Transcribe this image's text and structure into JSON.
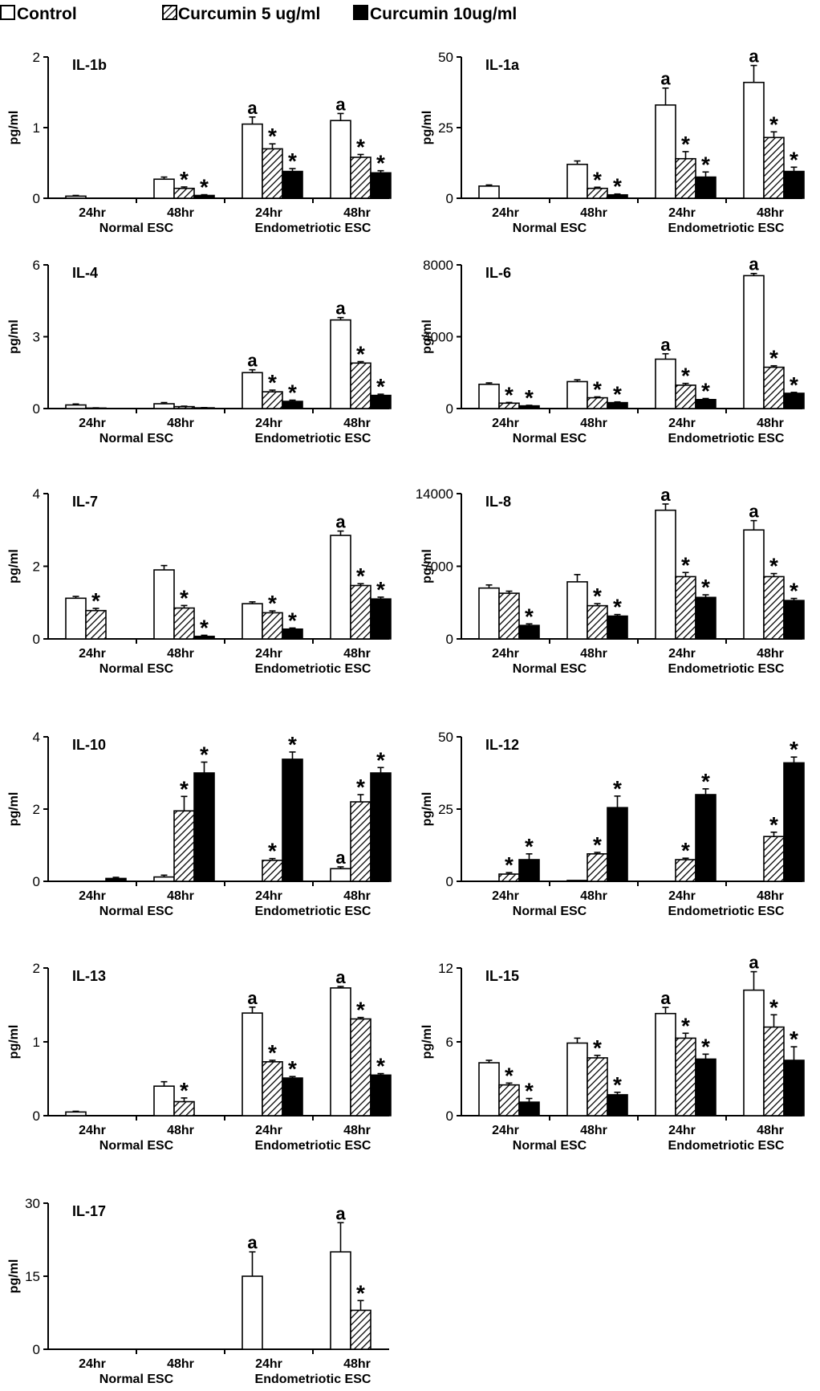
{
  "legend": [
    {
      "label": "Control",
      "fill": "white"
    },
    {
      "label": "Curcumin 5 ug/ml",
      "fill": "hatch"
    },
    {
      "label": "Curcumin 10ug/ml",
      "fill": "black"
    }
  ],
  "colors": {
    "bar_outline": "#000000",
    "solid": "#000000",
    "empty": "#ffffff"
  },
  "chart_data": [
    {
      "type": "bar",
      "title": "IL-1b",
      "ylabel": "pg/ml",
      "ylim": [
        0,
        2
      ],
      "yticks": [
        0,
        1,
        2
      ],
      "categories": [
        "24hr",
        "48hr",
        "24hr",
        "48hr"
      ],
      "groups": [
        "Normal ESC",
        "Endometriotic ESC"
      ],
      "series": [
        {
          "name": "Control",
          "values": [
            0.03,
            0.27,
            1.05,
            1.1
          ],
          "errors": [
            0.01,
            0.03,
            0.1,
            0.1
          ],
          "marks": [
            "",
            "",
            "a",
            "a"
          ]
        },
        {
          "name": "Curcumin 5 ug/ml",
          "values": [
            0,
            0.14,
            0.7,
            0.58
          ],
          "errors": [
            0,
            0.02,
            0.07,
            0.04
          ],
          "marks": [
            "",
            "*",
            "*",
            "*"
          ]
        },
        {
          "name": "Curcumin 10ug/ml",
          "values": [
            0,
            0.04,
            0.38,
            0.36
          ],
          "errors": [
            0,
            0.01,
            0.04,
            0.03
          ],
          "marks": [
            "",
            "*",
            "*",
            "*"
          ]
        }
      ]
    },
    {
      "type": "bar",
      "title": "IL-1a",
      "ylabel": "pg/ml",
      "ylim": [
        0,
        50
      ],
      "yticks": [
        0,
        25,
        50
      ],
      "categories": [
        "24hr",
        "48hr",
        "24hr",
        "48hr"
      ],
      "groups": [
        "Normal ESC",
        "Endometriotic ESC"
      ],
      "series": [
        {
          "name": "Control",
          "values": [
            4.3,
            12,
            33,
            41
          ],
          "errors": [
            0.4,
            1.2,
            6,
            6
          ],
          "marks": [
            "",
            "",
            "a",
            "a"
          ]
        },
        {
          "name": "Curcumin 5 ug/ml",
          "values": [
            0,
            3.5,
            14,
            21.5
          ],
          "errors": [
            0,
            0.4,
            2.5,
            2
          ],
          "marks": [
            "",
            "*",
            "*",
            "*"
          ]
        },
        {
          "name": "Curcumin 10ug/ml",
          "values": [
            0,
            1.2,
            7.5,
            9.5
          ],
          "errors": [
            0,
            0.3,
            1.8,
            1.5
          ],
          "marks": [
            "",
            "*",
            "*",
            "*"
          ]
        }
      ]
    },
    {
      "type": "bar",
      "title": "IL-4",
      "ylabel": "pg/ml",
      "ylim": [
        0,
        6
      ],
      "yticks": [
        0,
        3,
        6
      ],
      "categories": [
        "24hr",
        "48hr",
        "24hr",
        "48hr"
      ],
      "groups": [
        "Normal ESC",
        "Endometriotic ESC"
      ],
      "series": [
        {
          "name": "Control",
          "values": [
            0.15,
            0.2,
            1.5,
            3.7
          ],
          "errors": [
            0.04,
            0.05,
            0.12,
            0.1
          ],
          "marks": [
            "",
            "",
            "a",
            "a"
          ]
        },
        {
          "name": "Curcumin 5 ug/ml",
          "values": [
            0.02,
            0.08,
            0.7,
            1.9
          ],
          "errors": [
            0.01,
            0.02,
            0.07,
            0.06
          ],
          "marks": [
            "",
            "",
            "*",
            "*"
          ]
        },
        {
          "name": "Curcumin 10ug/ml",
          "values": [
            0,
            0.03,
            0.3,
            0.55
          ],
          "errors": [
            0,
            0.01,
            0.05,
            0.05
          ],
          "marks": [
            "",
            "",
            "*",
            "*"
          ]
        }
      ]
    },
    {
      "type": "bar",
      "title": "IL-6",
      "ylabel": "pg/ml",
      "ylim": [
        0,
        8000
      ],
      "yticks": [
        0,
        4000,
        8000
      ],
      "categories": [
        "24hr",
        "48hr",
        "24hr",
        "48hr"
      ],
      "groups": [
        "Normal ESC",
        "Endometriotic ESC"
      ],
      "series": [
        {
          "name": "Control",
          "values": [
            1350,
            1500,
            2750,
            7400
          ],
          "errors": [
            80,
            100,
            300,
            120
          ],
          "marks": [
            "",
            "",
            "a",
            "a"
          ]
        },
        {
          "name": "Curcumin 5 ug/ml",
          "values": [
            300,
            600,
            1300,
            2300
          ],
          "errors": [
            40,
            50,
            100,
            80
          ],
          "marks": [
            "*",
            "*",
            "*",
            "*"
          ]
        },
        {
          "name": "Curcumin 10ug/ml",
          "values": [
            150,
            330,
            500,
            850
          ],
          "errors": [
            30,
            40,
            60,
            50
          ],
          "marks": [
            "*",
            "*",
            "*",
            "*"
          ]
        }
      ]
    },
    {
      "type": "bar",
      "title": "IL-7",
      "ylabel": "pg/ml",
      "ylim": [
        0,
        4
      ],
      "yticks": [
        0,
        2,
        4
      ],
      "categories": [
        "24hr",
        "48hr",
        "24hr",
        "48hr"
      ],
      "groups": [
        "Normal ESC",
        "Endometriotic ESC"
      ],
      "series": [
        {
          "name": "Control",
          "values": [
            1.12,
            1.9,
            0.97,
            2.85
          ],
          "errors": [
            0.05,
            0.12,
            0.05,
            0.12
          ],
          "marks": [
            "",
            "",
            "",
            "a"
          ]
        },
        {
          "name": "Curcumin 5 ug/ml",
          "values": [
            0.78,
            0.85,
            0.72,
            1.47
          ],
          "errors": [
            0.06,
            0.07,
            0.05,
            0.05
          ],
          "marks": [
            "*",
            "*",
            "*",
            "*"
          ]
        },
        {
          "name": "Curcumin 10ug/ml",
          "values": [
            0,
            0.07,
            0.27,
            1.1
          ],
          "errors": [
            0,
            0.03,
            0.03,
            0.05
          ],
          "marks": [
            "",
            "*",
            "*",
            "*"
          ]
        }
      ]
    },
    {
      "type": "bar",
      "title": "IL-8",
      "ylabel": "pg/ml",
      "ylim": [
        0,
        14000
      ],
      "yticks": [
        0,
        7000,
        14000
      ],
      "categories": [
        "24hr",
        "48hr",
        "24hr",
        "48hr"
      ],
      "groups": [
        "Normal ESC",
        "Endometriotic ESC"
      ],
      "series": [
        {
          "name": "Control",
          "values": [
            4900,
            5500,
            12400,
            10500
          ],
          "errors": [
            300,
            700,
            600,
            900
          ],
          "marks": [
            "",
            "",
            "a",
            "a"
          ]
        },
        {
          "name": "Curcumin 5 ug/ml",
          "values": [
            4400,
            3200,
            6000,
            6000
          ],
          "errors": [
            200,
            200,
            400,
            300
          ],
          "marks": [
            "",
            "*",
            "*",
            "*"
          ]
        },
        {
          "name": "Curcumin 10ug/ml",
          "values": [
            1300,
            2200,
            4000,
            3700
          ],
          "errors": [
            150,
            150,
            250,
            200
          ],
          "marks": [
            "*",
            "*",
            "*",
            "*"
          ]
        }
      ]
    },
    {
      "type": "bar",
      "title": "IL-10",
      "ylabel": "pg/ml",
      "ylim": [
        0,
        4
      ],
      "yticks": [
        0,
        2,
        4
      ],
      "categories": [
        "24hr",
        "48hr",
        "24hr",
        "48hr"
      ],
      "groups": [
        "Normal ESC",
        "Endometriotic ESC"
      ],
      "series": [
        {
          "name": "Control",
          "values": [
            0,
            0.12,
            0,
            0.35
          ],
          "errors": [
            0,
            0.05,
            0,
            0.05
          ],
          "marks": [
            "",
            "",
            "",
            "a"
          ]
        },
        {
          "name": "Curcumin 5 ug/ml",
          "values": [
            0,
            1.95,
            0.58,
            2.2
          ],
          "errors": [
            0,
            0.4,
            0.05,
            0.2
          ],
          "marks": [
            "",
            "*",
            "*",
            "*"
          ]
        },
        {
          "name": "Curcumin 10ug/ml",
          "values": [
            0.08,
            3.0,
            3.38,
            3.0
          ],
          "errors": [
            0.03,
            0.3,
            0.2,
            0.15
          ],
          "marks": [
            "",
            "*",
            "*",
            "*"
          ]
        }
      ]
    },
    {
      "type": "bar",
      "title": "IL-12",
      "ylabel": "pg/ml",
      "ylim": [
        0,
        50
      ],
      "yticks": [
        0,
        25,
        50
      ],
      "categories": [
        "24hr",
        "48hr",
        "24hr",
        "48hr"
      ],
      "groups": [
        "Normal ESC",
        "Endometriotic ESC"
      ],
      "series": [
        {
          "name": "Control",
          "values": [
            0,
            0.3,
            0,
            0
          ],
          "errors": [
            0,
            0,
            0,
            0
          ],
          "marks": [
            "",
            "",
            "",
            ""
          ]
        },
        {
          "name": "Curcumin 5 ug/ml",
          "values": [
            2.5,
            9.5,
            7.5,
            15.5
          ],
          "errors": [
            0.5,
            0.5,
            0.5,
            1.5
          ],
          "marks": [
            "*",
            "*",
            "*",
            "*"
          ]
        },
        {
          "name": "Curcumin 10ug/ml",
          "values": [
            7.5,
            25.5,
            30,
            41
          ],
          "errors": [
            2,
            4,
            2,
            2
          ],
          "marks": [
            "*",
            "*",
            "*",
            "*"
          ]
        }
      ]
    },
    {
      "type": "bar",
      "title": "IL-13",
      "ylabel": "pg/ml",
      "ylim": [
        0,
        2
      ],
      "yticks": [
        0,
        1,
        2
      ],
      "categories": [
        "24hr",
        "48hr",
        "24hr",
        "48hr"
      ],
      "groups": [
        "Normal ESC",
        "Endometriotic ESC"
      ],
      "series": [
        {
          "name": "Control",
          "values": [
            0.05,
            0.4,
            1.39,
            1.73
          ],
          "errors": [
            0.01,
            0.06,
            0.08,
            0.02
          ],
          "marks": [
            "",
            "",
            "a",
            "a"
          ]
        },
        {
          "name": "Curcumin 5 ug/ml",
          "values": [
            0,
            0.19,
            0.73,
            1.31
          ],
          "errors": [
            0,
            0.05,
            0.02,
            0.02
          ],
          "marks": [
            "",
            "*",
            "*",
            "*"
          ]
        },
        {
          "name": "Curcumin 10ug/ml",
          "values": [
            0,
            0,
            0.51,
            0.55
          ],
          "errors": [
            0,
            0,
            0.02,
            0.02
          ],
          "marks": [
            "",
            "",
            "*",
            "*"
          ]
        }
      ]
    },
    {
      "type": "bar",
      "title": "IL-15",
      "ylabel": "pg/ml",
      "ylim": [
        0,
        12
      ],
      "yticks": [
        0,
        6,
        12
      ],
      "categories": [
        "24hr",
        "48hr",
        "24hr",
        "48hr"
      ],
      "groups": [
        "Normal ESC",
        "Endometriotic ESC"
      ],
      "series": [
        {
          "name": "Control",
          "values": [
            4.3,
            5.9,
            8.3,
            10.2
          ],
          "errors": [
            0.2,
            0.4,
            0.5,
            1.5
          ],
          "marks": [
            "",
            "",
            "a",
            "a"
          ]
        },
        {
          "name": "Curcumin 5 ug/ml",
          "values": [
            2.5,
            4.7,
            6.3,
            7.2
          ],
          "errors": [
            0.15,
            0.2,
            0.4,
            1.0
          ],
          "marks": [
            "*",
            "*",
            "*",
            "*"
          ]
        },
        {
          "name": "Curcumin 10ug/ml",
          "values": [
            1.1,
            1.7,
            4.6,
            4.5
          ],
          "errors": [
            0.3,
            0.2,
            0.4,
            1.1
          ],
          "marks": [
            "*",
            "*",
            "*",
            "*"
          ]
        }
      ]
    },
    {
      "type": "bar",
      "title": "IL-17",
      "ylabel": "pg/ml",
      "ylim": [
        0,
        30
      ],
      "yticks": [
        0,
        15,
        30
      ],
      "categories": [
        "24hr",
        "48hr",
        "24hr",
        "48hr"
      ],
      "groups": [
        "Normal ESC",
        "Endometriotic ESC"
      ],
      "series": [
        {
          "name": "Control",
          "values": [
            0,
            0,
            15,
            20
          ],
          "errors": [
            0,
            0,
            5,
            6
          ],
          "marks": [
            "",
            "",
            "a",
            "a"
          ]
        },
        {
          "name": "Curcumin 5 ug/ml",
          "values": [
            0,
            0,
            0,
            8
          ],
          "errors": [
            0,
            0,
            0,
            2
          ],
          "marks": [
            "",
            "",
            "",
            "*"
          ]
        },
        {
          "name": "Curcumin 10ug/ml",
          "values": [
            0,
            0,
            0,
            0
          ],
          "errors": [
            0,
            0,
            0,
            0
          ],
          "marks": [
            "",
            "",
            "",
            ""
          ]
        }
      ]
    }
  ]
}
